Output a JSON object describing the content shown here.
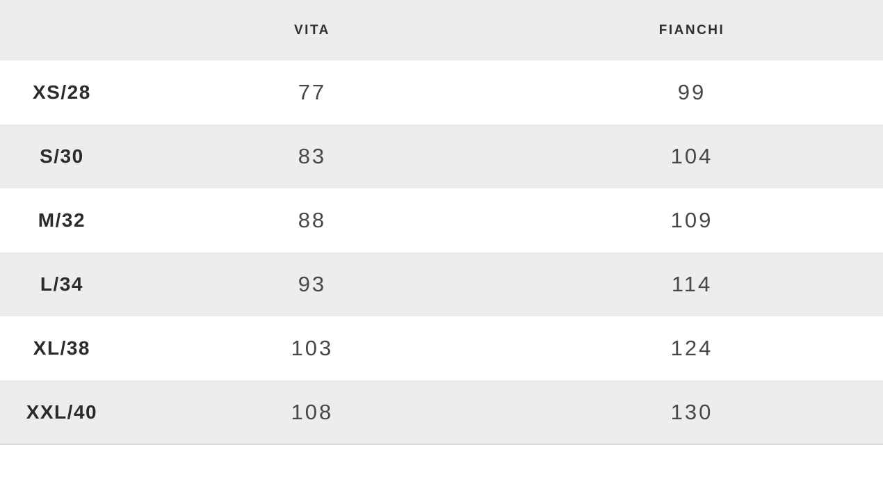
{
  "chart_data": {
    "type": "table",
    "title": "",
    "columns": [
      "",
      "VITA",
      "FIANCHI"
    ],
    "rows": [
      {
        "size": "XS/28",
        "vita": "77",
        "fianchi": "99"
      },
      {
        "size": "S/30",
        "vita": "83",
        "fianchi": "104"
      },
      {
        "size": "M/32",
        "vita": "88",
        "fianchi": "109"
      },
      {
        "size": "L/34",
        "vita": "93",
        "fianchi": "114"
      },
      {
        "size": "XL/38",
        "vita": "103",
        "fianchi": "124"
      },
      {
        "size": "XXL/40",
        "vita": "108",
        "fianchi": "130"
      }
    ],
    "layout_hints": {
      "zebra_striping": true,
      "striped_rows": [
        "header",
        "S/30",
        "L/34",
        "XXL/40"
      ],
      "alignment": "center"
    }
  },
  "table": {
    "header": {
      "size_label": "",
      "vita_label": "VITA",
      "fianchi_label": "FIANCHI"
    }
  },
  "colors": {
    "stripe_bg": "#ededed",
    "header_bg": "#ededed",
    "row_bg": "#ffffff",
    "bottom_border": "#d9d9d9",
    "header_text": "#2e2e2e",
    "size_label_text": "#2b2b2b",
    "value_text": "#484848"
  }
}
